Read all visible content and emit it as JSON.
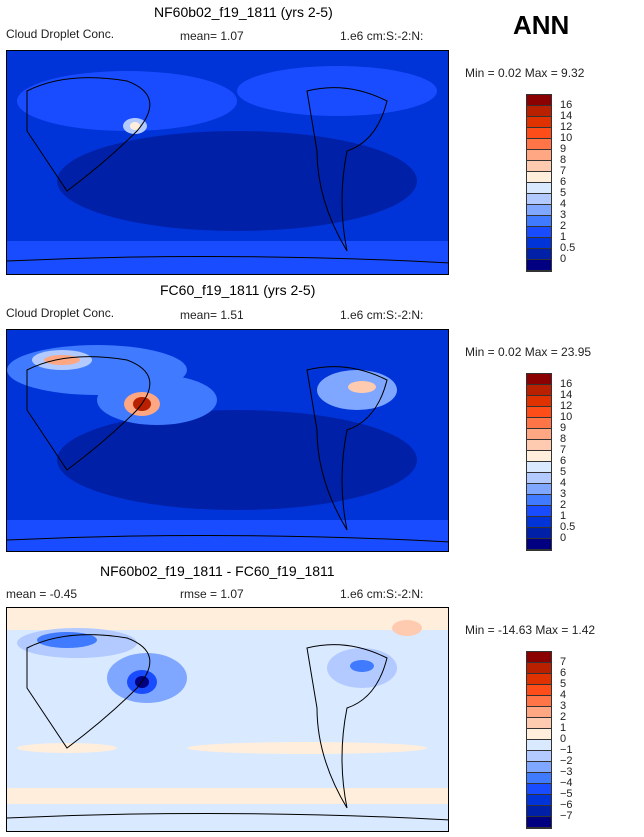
{
  "season": "ANN",
  "palette": [
    "#000080",
    "#0020a8",
    "#0034d8",
    "#1a4cff",
    "#3f7aff",
    "#7fa7ff",
    "#b2caff",
    "#d9e9ff",
    "#ffeedc",
    "#ffcbb0",
    "#ffa682",
    "#ff7548",
    "#ff4d1a",
    "#e03200",
    "#b82000",
    "#8b0000"
  ],
  "panels": [
    {
      "title": "NF60b02_f19_1811 (yrs 2-5)",
      "left": "Cloud Droplet Conc.",
      "mid": "mean=   1.07",
      "units": "1.e6 cm:S:-2:N:",
      "minmax": "Min =    0.02  Max =    9.32",
      "levels": [
        "16",
        "14",
        "12",
        "10",
        "9",
        "8",
        "7",
        "6",
        "5",
        "4",
        "3",
        "2",
        "1",
        "0.5",
        "0"
      ]
    },
    {
      "title": "FC60_f19_1811 (yrs 2-5)",
      "left": "Cloud Droplet Conc.",
      "mid": "mean=   1.51",
      "units": "1.e6 cm:S:-2:N:",
      "minmax": "Min =    0.02  Max =   23.95",
      "levels": [
        "16",
        "14",
        "12",
        "10",
        "9",
        "8",
        "7",
        "6",
        "5",
        "4",
        "3",
        "2",
        "1",
        "0.5",
        "0"
      ]
    },
    {
      "title": "NF60b02_f19_1811 - FC60_f19_1811",
      "left": "mean =  -0.45",
      "mid": "rmse =   1.07",
      "units": "1.e6 cm:S:-2:N:",
      "minmax": "Min = -14.63  Max =    1.42",
      "levels": [
        "7",
        "6",
        "5",
        "4",
        "3",
        "2",
        "1",
        "0",
        "−1",
        "−2",
        "−3",
        "−4",
        "−5",
        "−6",
        "−7"
      ]
    }
  ]
}
